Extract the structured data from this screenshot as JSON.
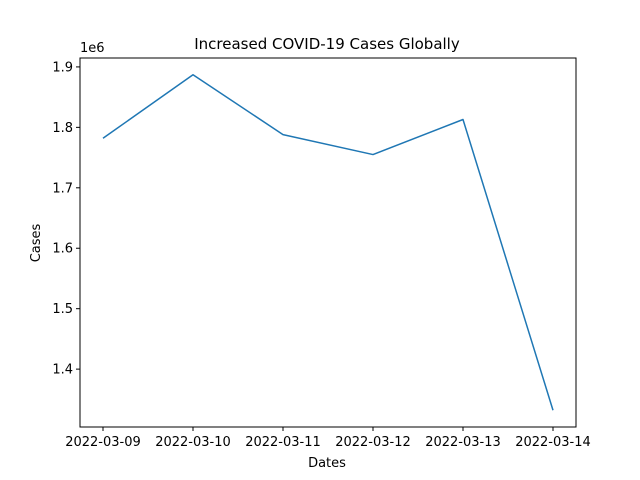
{
  "chart_data": {
    "type": "line",
    "title": "Increased COVID-19 Cases Globally",
    "xlabel": "Dates",
    "ylabel": "Cases",
    "y_offset_label": "1e6",
    "x": [
      "2022-03-09",
      "2022-03-10",
      "2022-03-11",
      "2022-03-12",
      "2022-03-13",
      "2022-03-14"
    ],
    "series": [
      {
        "values": [
          1782000,
          1887000,
          1788000,
          1755000,
          1813000,
          1332000
        ],
        "color": "#1f77b4"
      }
    ],
    "y_ticks": [
      1.4,
      1.5,
      1.6,
      1.7,
      1.8,
      1.9
    ],
    "y_tick_labels": [
      "1.4",
      "1.5",
      "1.6",
      "1.7",
      "1.8",
      "1.9"
    ],
    "ylim": [
      1304250,
      1914750
    ],
    "grid": false,
    "legend": "none"
  }
}
